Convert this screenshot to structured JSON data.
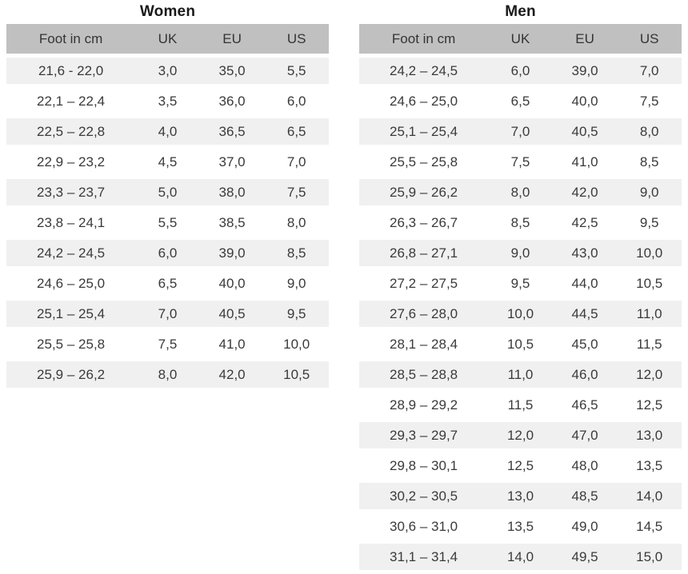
{
  "colors": {
    "header_bg": "#c0c0c0",
    "stripe_bg": "#f0f0f0",
    "row_bg": "#ffffff",
    "cell_text": "#3a3a3a",
    "title_text": "#1a1a1a"
  },
  "chart_data": [
    {
      "type": "table",
      "title": "Women",
      "columns": [
        "Foot in cm",
        "UK",
        "EU",
        "US"
      ],
      "rows": [
        [
          "21,6 - 22,0",
          "3,0",
          "35,0",
          "5,5"
        ],
        [
          "22,1 – 22,4",
          "3,5",
          "36,0",
          "6,0"
        ],
        [
          "22,5 – 22,8",
          "4,0",
          "36,5",
          "6,5"
        ],
        [
          "22,9 – 23,2",
          "4,5",
          "37,0",
          "7,0"
        ],
        [
          "23,3 – 23,7",
          "5,0",
          "38,0",
          "7,5"
        ],
        [
          "23,8 – 24,1",
          "5,5",
          "38,5",
          "8,0"
        ],
        [
          "24,2 – 24,5",
          "6,0",
          "39,0",
          "8,5"
        ],
        [
          "24,6 – 25,0",
          "6,5",
          "40,0",
          "9,0"
        ],
        [
          "25,1 – 25,4",
          "7,0",
          "40,5",
          "9,5"
        ],
        [
          "25,5 – 25,8",
          "7,5",
          "41,0",
          "10,0"
        ],
        [
          "25,9 – 26,2",
          "8,0",
          "42,0",
          "10,5"
        ]
      ]
    },
    {
      "type": "table",
      "title": "Men",
      "columns": [
        "Foot in cm",
        "UK",
        "EU",
        "US"
      ],
      "rows": [
        [
          "24,2 – 24,5",
          "6,0",
          "39,0",
          "7,0"
        ],
        [
          "24,6 – 25,0",
          "6,5",
          "40,0",
          "7,5"
        ],
        [
          "25,1 – 25,4",
          "7,0",
          "40,5",
          "8,0"
        ],
        [
          "25,5 – 25,8",
          "7,5",
          "41,0",
          "8,5"
        ],
        [
          "25,9 – 26,2",
          "8,0",
          "42,0",
          "9,0"
        ],
        [
          "26,3 – 26,7",
          "8,5",
          "42,5",
          "9,5"
        ],
        [
          "26,8 – 27,1",
          "9,0",
          "43,0",
          "10,0"
        ],
        [
          "27,2 – 27,5",
          "9,5",
          "44,0",
          "10,5"
        ],
        [
          "27,6 – 28,0",
          "10,0",
          "44,5",
          "11,0"
        ],
        [
          "28,1 – 28,4",
          "10,5",
          "45,0",
          "11,5"
        ],
        [
          "28,5 – 28,8",
          "11,0",
          "46,0",
          "12,0"
        ],
        [
          "28,9 – 29,2",
          "11,5",
          "46,5",
          "12,5"
        ],
        [
          "29,3 – 29,7",
          "12,0",
          "47,0",
          "13,0"
        ],
        [
          "29,8 – 30,1",
          "12,5",
          "48,0",
          "13,5"
        ],
        [
          "30,2 – 30,5",
          "13,0",
          "48,5",
          "14,0"
        ],
        [
          "30,6 – 31,0",
          "13,5",
          "49,0",
          "14,5"
        ],
        [
          "31,1 – 31,4",
          "14,0",
          "49,5",
          "15,0"
        ]
      ]
    }
  ]
}
